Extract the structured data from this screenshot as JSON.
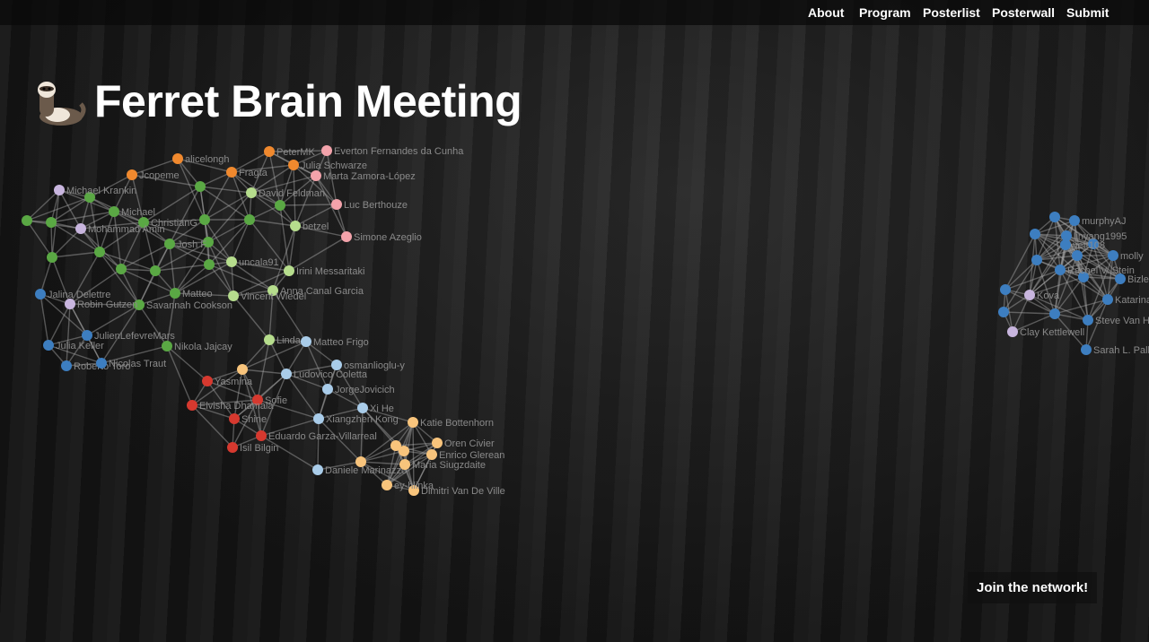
{
  "nav": {
    "items": [
      "About",
      "Program",
      "Posterlist",
      "Posterwall",
      "Submit"
    ]
  },
  "header": {
    "title": "Ferret Brain Meeting"
  },
  "network": {
    "nodes": [
      "alicelongh",
      "Jcopeme",
      "PeterMK",
      "Fragta",
      "Everton Fernandes da Cunha",
      "Julia Schwarze",
      "Marta Zamora-López",
      "Luc Berthouze",
      "Simone Azeglio",
      "David Feldman",
      "betzel",
      "uncala91",
      "Irini Messaritaki",
      "Anna Canal Garcia",
      "Vincent Wiedel",
      "Michael",
      "ChristianG",
      "Josh F",
      "Matteo",
      "Savannah Cookson",
      "Nikola Jajcay",
      "Michael Krankin",
      "Mohammad Amin",
      "Robin Gutzen",
      "Jalina Delettre",
      "JulienLefevreMars",
      "Julia Keller",
      "Roberto Toro",
      "Nicolas Traut",
      "Linda",
      "Matteo Frigo",
      "Ludovico Coletta",
      "osmanlioglu-y",
      "JorgeJovicich",
      "Xi He",
      "Xiangzhen Kong",
      "Daniele Marinazzo",
      "Yasmina",
      "Sofie",
      "Elvisha Dhamala",
      "Shine",
      "Eduardo Garza-Villarreal",
      "Isil Bilgin",
      "Katie Bottenhorn",
      "Oren Civier",
      "Enrico Glerean",
      "Maria Siugzdaite",
      "Dimitri Van De Ville",
      "ey-hlinka",
      "murphyAJ",
      "linyang1995",
      "yett108",
      "molly",
      "Rachel V. Stein",
      "Bizley",
      "Katarina",
      "Steve Van H",
      "Sarah L. Pall",
      "Clay Kettlewell",
      "Kova"
    ]
  },
  "cta": {
    "label": "Join the network!"
  }
}
